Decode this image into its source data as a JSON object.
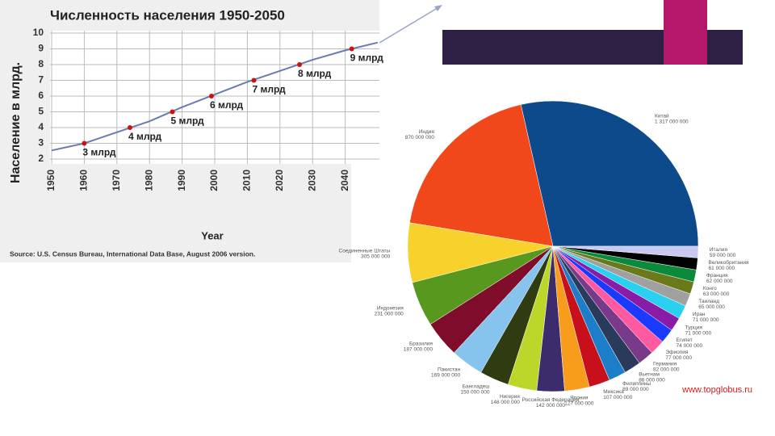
{
  "chart_data": [
    {
      "type": "line",
      "title": "Численность населения 1950-2050",
      "y_label": "Население в млрд.",
      "x_label": "Year",
      "source": "Source: U.S. Census Bureau, International Data Base, August 2006 version.",
      "x": [
        1950,
        1960,
        1970,
        1980,
        1990,
        2000,
        2010,
        2020,
        2030,
        2040,
        2050
      ],
      "values": [
        2.55,
        3.0,
        3.7,
        4.4,
        5.3,
        6.1,
        6.9,
        7.6,
        8.3,
        8.9,
        9.4
      ],
      "color": "#6a7bb0",
      "xlim": [
        1950,
        2050
      ],
      "ylim": [
        2,
        10
      ],
      "xticks": [
        1950,
        1960,
        1970,
        1980,
        1990,
        2000,
        2010,
        2020,
        2030,
        2040
      ],
      "yticks": [
        2,
        3,
        4,
        5,
        6,
        7,
        8,
        9,
        10
      ],
      "grid": true,
      "milestones": {
        "x": [
          1960,
          1974,
          1987,
          1999,
          2012,
          2026,
          2042
        ],
        "values": [
          3,
          4,
          5,
          6,
          7,
          8,
          9
        ],
        "value_labels": [
          "3 млрд",
          "4 млрд",
          "5 млрд",
          "6 млрд",
          "7 млрд",
          "8 млрд",
          "9 млрд"
        ],
        "color": "#d01010"
      }
    },
    {
      "type": "pie",
      "categories": [
        "Китай",
        "Индия",
        "Соединенные Штаты",
        "Индонезия",
        "Бразилия",
        "Пакистан",
        "Бангладеш",
        "Нигерия",
        "Российская Федерация",
        "Япония",
        "Мексика",
        "Филиппины",
        "Вьетнам",
        "Германия",
        "Эфиопия",
        "Египет",
        "Турция",
        "Иран",
        "Таиланд",
        "Конго",
        "Франция",
        "Великобритания",
        "Италия"
      ],
      "values": [
        1317000000,
        870000000,
        305000000,
        231000000,
        187000000,
        169000000,
        150000000,
        148000000,
        142000000,
        127000000,
        107000000,
        89000000,
        86000000,
        82000000,
        77000000,
        74000000,
        71000000,
        71000000,
        65000000,
        63000000,
        62000000,
        61000000,
        59000000
      ],
      "value_labels": [
        "1 317 000 000",
        "870 000 000",
        "305 000 000",
        "231 000 000",
        "187 000 000",
        "169 000 000",
        "150 000 000",
        "148 000 000",
        "142 000 000",
        "127 000 000",
        "107 000 000",
        "89 000 000",
        "86 000 000",
        "82 000 000",
        "77 000 000",
        "74 000 000",
        "71 000 000",
        "71 000 000",
        "65 000 000",
        "63 000 000",
        "62 000 000",
        "61 000 000",
        "59 000 000"
      ],
      "colors": [
        "#0c4a8c",
        "#f0481a",
        "#f8d22c",
        "#58981e",
        "#7e0c2a",
        "#86c4ee",
        "#2f3b11",
        "#bcd62a",
        "#3c2c6c",
        "#f89c1c",
        "#c8101c",
        "#1c7ec8",
        "#2a3a5a",
        "#7a3a8a",
        "#ff5aa0",
        "#1a3aff",
        "#8a1aa8",
        "#2ad0f0",
        "#a0a0a0",
        "#6a7a1a",
        "#0a8a3a",
        "#000000",
        "#c8c8f0"
      ]
    }
  ],
  "footer_url": "www.topglobus.ru"
}
